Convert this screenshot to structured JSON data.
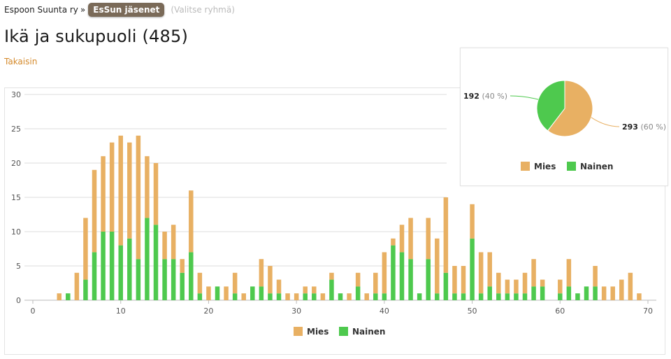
{
  "breadcrumb": {
    "org": "Espoon Suunta ry",
    "separator": "»",
    "group": "EsSun jäsenet",
    "group_hint": "(Valitse ryhmä)"
  },
  "page": {
    "title": "Ikä ja sukupuoli (485)",
    "back_link": "Takaisin"
  },
  "colors": {
    "mies": "#e8b063",
    "nainen": "#4ec94e",
    "link": "#d4892a",
    "grid": "#dddddd"
  },
  "chart_data": [
    {
      "type": "bar",
      "stacked": true,
      "xlim": [
        0,
        70
      ],
      "ylim": [
        0,
        30
      ],
      "x_ticks": [
        0,
        10,
        20,
        30,
        40,
        50,
        60,
        70
      ],
      "y_ticks": [
        0,
        5,
        10,
        15,
        20,
        25,
        30
      ],
      "grid": true,
      "legend": "bottom-center",
      "x": [
        3,
        4,
        5,
        6,
        7,
        8,
        9,
        10,
        11,
        12,
        13,
        14,
        15,
        16,
        17,
        18,
        19,
        20,
        21,
        22,
        23,
        24,
        25,
        26,
        27,
        28,
        29,
        30,
        31,
        32,
        33,
        34,
        35,
        36,
        37,
        38,
        39,
        40,
        41,
        42,
        43,
        44,
        45,
        46,
        47,
        48,
        49,
        50,
        51,
        52,
        53,
        54,
        55,
        56,
        57,
        58,
        59,
        60,
        61,
        62,
        63,
        64,
        65,
        66,
        67,
        68,
        69
      ],
      "series": [
        {
          "name": "Nainen",
          "values": [
            0,
            1,
            0,
            3,
            7,
            10,
            10,
            8,
            9,
            6,
            12,
            11,
            6,
            6,
            4,
            7,
            1,
            0,
            2,
            0,
            1,
            0,
            2,
            2,
            1,
            1,
            0,
            0,
            1,
            1,
            0,
            3,
            1,
            0,
            2,
            0,
            1,
            1,
            8,
            7,
            6,
            1,
            6,
            1,
            4,
            1,
            1,
            9,
            1,
            2,
            1,
            1,
            1,
            1,
            2,
            2,
            0,
            1,
            2,
            1,
            2,
            2,
            0,
            0,
            0,
            0,
            0
          ]
        },
        {
          "name": "Mies",
          "values": [
            1,
            0,
            4,
            9,
            12,
            11,
            13,
            16,
            14,
            18,
            9,
            9,
            4,
            5,
            2,
            9,
            3,
            2,
            0,
            2,
            3,
            1,
            0,
            4,
            4,
            2,
            1,
            1,
            1,
            1,
            1,
            1,
            0,
            1,
            2,
            1,
            3,
            6,
            1,
            4,
            6,
            0,
            6,
            8,
            11,
            4,
            4,
            5,
            6,
            5,
            3,
            2,
            2,
            3,
            4,
            1,
            0,
            2,
            4,
            0,
            0,
            3,
            2,
            2,
            3,
            4,
            1
          ]
        }
      ]
    },
    {
      "type": "pie",
      "legend": "bottom-center",
      "slices": [
        {
          "name": "Mies",
          "value": 293,
          "label_value": "293",
          "label_pct": "(60 %)"
        },
        {
          "name": "Nainen",
          "value": 192,
          "label_value": "192",
          "label_pct": "(40 %)"
        }
      ]
    }
  ]
}
